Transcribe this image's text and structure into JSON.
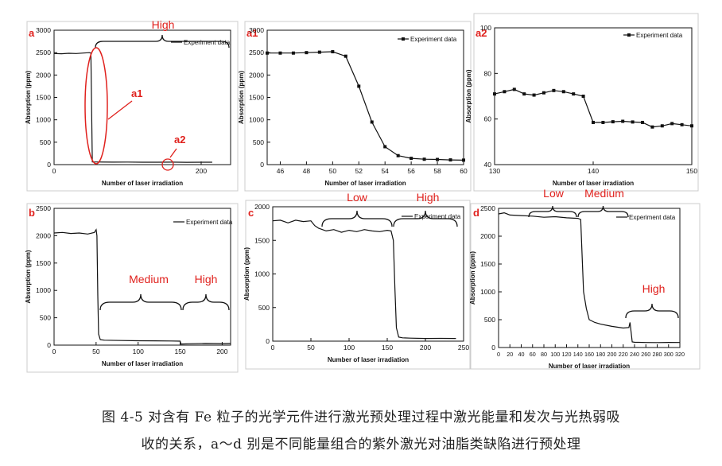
{
  "caption": {
    "line1": "图 4-5  对含有 Fe 粒子的光学元件进行激光预处理过程中激光能量和发次与光热弱吸",
    "line2": "收的关系，a～d 别是不同能量组合的紫外激光对油脂类缺陷进行预处理"
  },
  "colors": {
    "line": "#111111",
    "annotation": "#e0211d",
    "frame": "#cccccc"
  },
  "chart_data": [
    {
      "id": "a",
      "panel_label": "a",
      "type": "line",
      "xlabel": "Number of laser irradiation",
      "ylabel": "Absorption (ppm)",
      "xlim": [
        0,
        240
      ],
      "ylim": [
        0,
        3000
      ],
      "xticks": [
        0,
        200
      ],
      "yticks": [
        0,
        500,
        1000,
        1500,
        2000,
        2500,
        3000
      ],
      "legend": "Experiment data",
      "legend_position": "top-right",
      "markers": false,
      "x": [
        0,
        10,
        20,
        30,
        40,
        48,
        50,
        52,
        60,
        80,
        100,
        120,
        140,
        160,
        180,
        200,
        215
      ],
      "y": [
        2480,
        2475,
        2485,
        2480,
        2490,
        2500,
        2490,
        60,
        58,
        55,
        56,
        54,
        53,
        55,
        52,
        54,
        53
      ],
      "annotations": [
        "High",
        "a1",
        "a2"
      ]
    },
    {
      "id": "a1",
      "panel_label": "a1",
      "type": "line",
      "xlabel": "Number of laser irradiation",
      "ylabel": "Absorption (ppm)",
      "xlim": [
        45,
        60
      ],
      "ylim": [
        0,
        3000
      ],
      "xticks": [
        46,
        48,
        50,
        52,
        54,
        56,
        58,
        60
      ],
      "yticks": [
        0,
        500,
        1000,
        1500,
        2000,
        2500,
        3000
      ],
      "legend": "Experiment data",
      "legend_position": "top-right",
      "markers": true,
      "x": [
        45,
        46,
        47,
        48,
        49,
        50,
        51,
        52,
        53,
        54,
        55,
        56,
        57,
        58,
        59,
        60
      ],
      "y": [
        2490,
        2490,
        2490,
        2500,
        2510,
        2520,
        2420,
        1750,
        950,
        400,
        200,
        140,
        120,
        115,
        105,
        100
      ],
      "annotations": []
    },
    {
      "id": "a2",
      "panel_label": "a2",
      "type": "line",
      "xlabel": "Number of laser irradiation",
      "ylabel": "Absorption (ppm)",
      "xlim": [
        130,
        150
      ],
      "ylim": [
        40,
        100
      ],
      "xticks": [
        130,
        140,
        150
      ],
      "yticks": [
        40,
        60,
        80,
        100
      ],
      "legend": "Experiment data",
      "legend_position": "top-right",
      "markers": true,
      "x": [
        130,
        131,
        132,
        133,
        134,
        135,
        136,
        137,
        138,
        139,
        140,
        141,
        142,
        143,
        144,
        145,
        146,
        147,
        148,
        149,
        150
      ],
      "y": [
        71,
        72,
        73,
        71,
        70.5,
        71.5,
        72.5,
        72,
        71,
        70,
        58.5,
        58.5,
        58.8,
        59,
        58.7,
        58.5,
        56.5,
        57,
        58,
        57.5,
        57
      ],
      "annotations": []
    },
    {
      "id": "b",
      "panel_label": "b",
      "type": "line",
      "xlabel": "Number of laser irradiation",
      "ylabel": "Absorption (ppm)",
      "xlim": [
        0,
        210
      ],
      "ylim": [
        0,
        2500
      ],
      "xticks": [
        0,
        50,
        100,
        150,
        200
      ],
      "yticks": [
        0,
        500,
        1000,
        1500,
        2000,
        2500
      ],
      "legend": "Experiment data",
      "legend_position": "top-right",
      "markers": false,
      "x": [
        0,
        10,
        20,
        30,
        40,
        48,
        50,
        51,
        52,
        53,
        55,
        60,
        80,
        100,
        120,
        140,
        150,
        151,
        160,
        180,
        200,
        210
      ],
      "y": [
        2050,
        2060,
        2040,
        2050,
        2030,
        2060,
        2110,
        2000,
        900,
        200,
        100,
        90,
        85,
        80,
        78,
        75,
        72,
        20,
        25,
        30,
        28,
        30
      ],
      "annotations": [
        "Medium",
        "High"
      ]
    },
    {
      "id": "c",
      "panel_label": "c",
      "type": "line",
      "xlabel": "Number of laser irradiation",
      "ylabel": "Absorption (ppm)",
      "xlim": [
        0,
        250
      ],
      "ylim": [
        0,
        2000
      ],
      "xticks": [
        0,
        50,
        100,
        150,
        200,
        250
      ],
      "yticks": [
        0,
        500,
        1000,
        1500,
        2000
      ],
      "legend": "Experiment data",
      "legend_position": "top-right",
      "markers": false,
      "x": [
        0,
        10,
        20,
        30,
        40,
        50,
        55,
        60,
        70,
        80,
        90,
        100,
        110,
        120,
        130,
        140,
        150,
        155,
        158,
        160,
        162,
        165,
        170,
        180,
        200,
        220,
        240
      ],
      "y": [
        1790,
        1800,
        1760,
        1800,
        1780,
        1790,
        1720,
        1680,
        1640,
        1660,
        1620,
        1650,
        1630,
        1660,
        1640,
        1630,
        1650,
        1640,
        1500,
        800,
        200,
        60,
        50,
        45,
        40,
        42,
        40
      ],
      "annotations": [
        "Low",
        "High"
      ]
    },
    {
      "id": "d",
      "panel_label": "d",
      "type": "line",
      "xlabel": "Number of laser irradiation",
      "ylabel": "Absorption (ppm)",
      "xlim": [
        0,
        320
      ],
      "ylim": [
        0,
        2500
      ],
      "xticks": [
        0,
        20,
        40,
        60,
        80,
        100,
        120,
        140,
        160,
        180,
        200,
        220,
        240,
        260,
        280,
        300,
        320
      ],
      "yticks": [
        0,
        500,
        1000,
        1500,
        2000,
        2500
      ],
      "legend": "Experiment data",
      "legend_position": "top-right",
      "markers": false,
      "x": [
        0,
        10,
        20,
        40,
        60,
        80,
        100,
        120,
        140,
        145,
        148,
        150,
        155,
        160,
        170,
        180,
        200,
        220,
        230,
        232,
        236,
        240,
        260,
        280,
        300,
        320
      ],
      "y": [
        2400,
        2420,
        2380,
        2370,
        2360,
        2340,
        2350,
        2330,
        2320,
        2300,
        1500,
        1000,
        700,
        500,
        450,
        420,
        380,
        350,
        360,
        450,
        100,
        95,
        90,
        88,
        92,
        90
      ],
      "annotations": [
        "Low",
        "Medium",
        "High"
      ]
    }
  ]
}
